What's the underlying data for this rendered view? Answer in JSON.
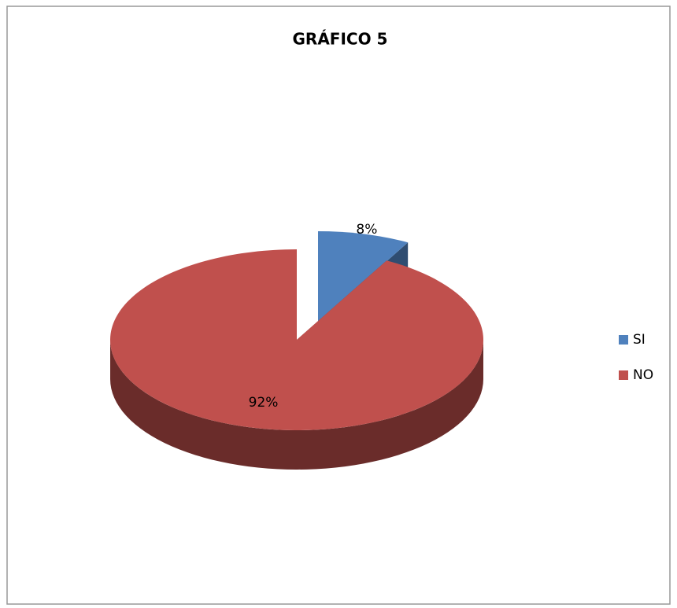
{
  "chart_data": {
    "type": "pie",
    "title": "GRÁFICO 5",
    "categories": [
      "SI",
      "NO"
    ],
    "values": [
      8,
      92
    ],
    "value_labels": [
      "8%",
      "92%"
    ],
    "colors": [
      "#4f81bd",
      "#c0504d"
    ],
    "legend": "right"
  }
}
